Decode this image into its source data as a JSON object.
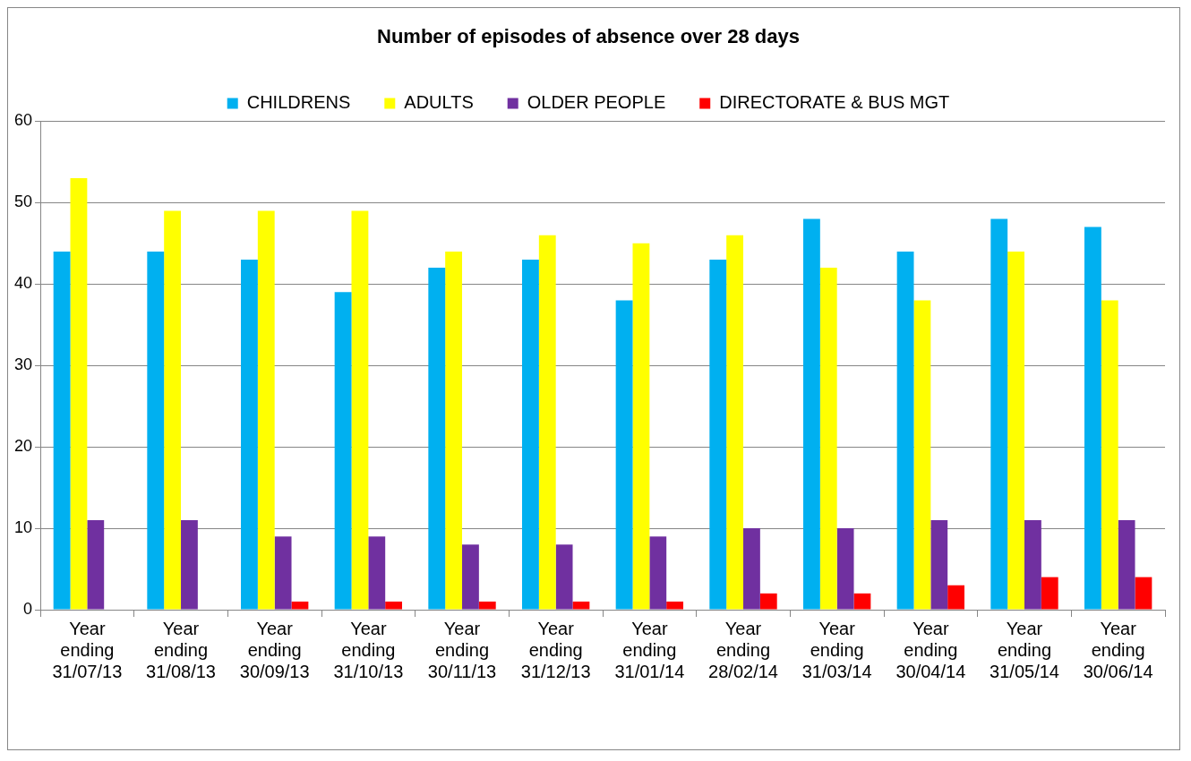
{
  "chart_data": {
    "type": "bar",
    "title": "Number of episodes of absence over 28 days",
    "categories": [
      "Year ending 31/07/13",
      "Year ending 31/08/13",
      "Year ending 30/09/13",
      "Year ending 31/10/13",
      "Year ending 30/11/13",
      "Year ending 31/12/13",
      "Year ending 31/01/14",
      "Year ending 28/02/14",
      "Year ending 31/03/14",
      "Year ending 30/04/14",
      "Year ending 31/05/14",
      "Year ending 30/06/14"
    ],
    "series": [
      {
        "name": "CHILDRENS",
        "color": "#00b0f0",
        "values": [
          44,
          44,
          43,
          39,
          42,
          43,
          38,
          43,
          48,
          44,
          48,
          47
        ]
      },
      {
        "name": "ADULTS",
        "color": "#ffff00",
        "values": [
          53,
          49,
          49,
          49,
          44,
          46,
          45,
          46,
          42,
          38,
          44,
          38
        ]
      },
      {
        "name": "OLDER PEOPLE",
        "color": "#7030a0",
        "values": [
          11,
          11,
          9,
          9,
          8,
          8,
          9,
          10,
          10,
          11,
          11,
          11
        ]
      },
      {
        "name": "DIRECTORATE & BUS MGT",
        "color": "#ff0000",
        "values": [
          0,
          0,
          1,
          1,
          1,
          1,
          1,
          2,
          2,
          3,
          4,
          4
        ]
      }
    ],
    "ylim": [
      0,
      60
    ],
    "yticks": [
      0,
      10,
      20,
      30,
      40,
      50,
      60
    ],
    "grid": "y",
    "legend": "top"
  }
}
